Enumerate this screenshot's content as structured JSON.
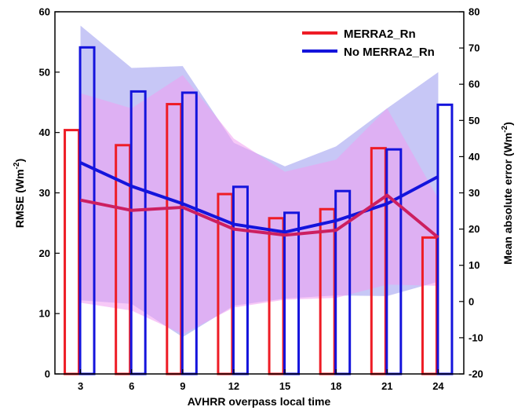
{
  "chart_data": {
    "type": "bar",
    "xlabel": "AVHRR overpass local time",
    "ylabel_left": {
      "main": "RMSE (Wm",
      "sup": "-2",
      "tail": ")"
    },
    "ylabel_right": {
      "main": "Mean absolute error (Wm",
      "sup": "-2",
      "tail": ")"
    },
    "categories": [
      3,
      6,
      9,
      12,
      15,
      18,
      21,
      24
    ],
    "x_ticks": [
      "3",
      "6",
      "9",
      "12",
      "15",
      "18",
      "21",
      "24"
    ],
    "left_axis": {
      "range": [
        0,
        60
      ],
      "ticks": [
        "0",
        "10",
        "20",
        "30",
        "40",
        "50",
        "60"
      ]
    },
    "right_axis": {
      "range": [
        -20,
        80
      ],
      "ticks": [
        "-20",
        "-10",
        "0",
        "10",
        "20",
        "30",
        "40",
        "50",
        "60",
        "70",
        "80"
      ]
    },
    "colors": {
      "merra": "#ee1c25",
      "no_merra": "#1414dc",
      "merra_band": "#f09cf0",
      "no_merra_band": "#9999ee",
      "line_merra": "#cc1f60"
    },
    "series": [
      {
        "name": "MERRA2_Rn",
        "rmse_bars": [
          40.4,
          37.9,
          44.7,
          29.8,
          25.8,
          27.3,
          37.4,
          22.6
        ],
        "mae_line": [
          28.8,
          27.1,
          27.6,
          24.0,
          23.0,
          23.8,
          29.6,
          22.6
        ],
        "band_upper": [
          46.5,
          44.0,
          49.5,
          39.0,
          33.5,
          35.5,
          44.0,
          29.0
        ],
        "band_lower": [
          11.8,
          10.5,
          6.6,
          11.0,
          12.3,
          12.6,
          14.8,
          14.6
        ]
      },
      {
        "name": "No MERRA2_Rn",
        "rmse_bars": [
          54.1,
          46.8,
          46.6,
          31.0,
          26.7,
          30.3,
          37.2,
          44.6
        ],
        "mae_line": [
          35.0,
          31.1,
          28.2,
          24.8,
          23.5,
          25.4,
          28.2,
          32.7
        ],
        "band_upper": [
          57.7,
          50.7,
          51.0,
          38.3,
          34.4,
          37.7,
          44.0,
          50.0
        ],
        "band_lower": [
          12.2,
          11.6,
          6.1,
          11.3,
          12.5,
          13.0,
          12.9,
          15.3
        ]
      }
    ],
    "legend": [
      "MERRA2_Rn",
      "No MERRA2_Rn"
    ],
    "legend_position": "top-right",
    "grid": false
  }
}
